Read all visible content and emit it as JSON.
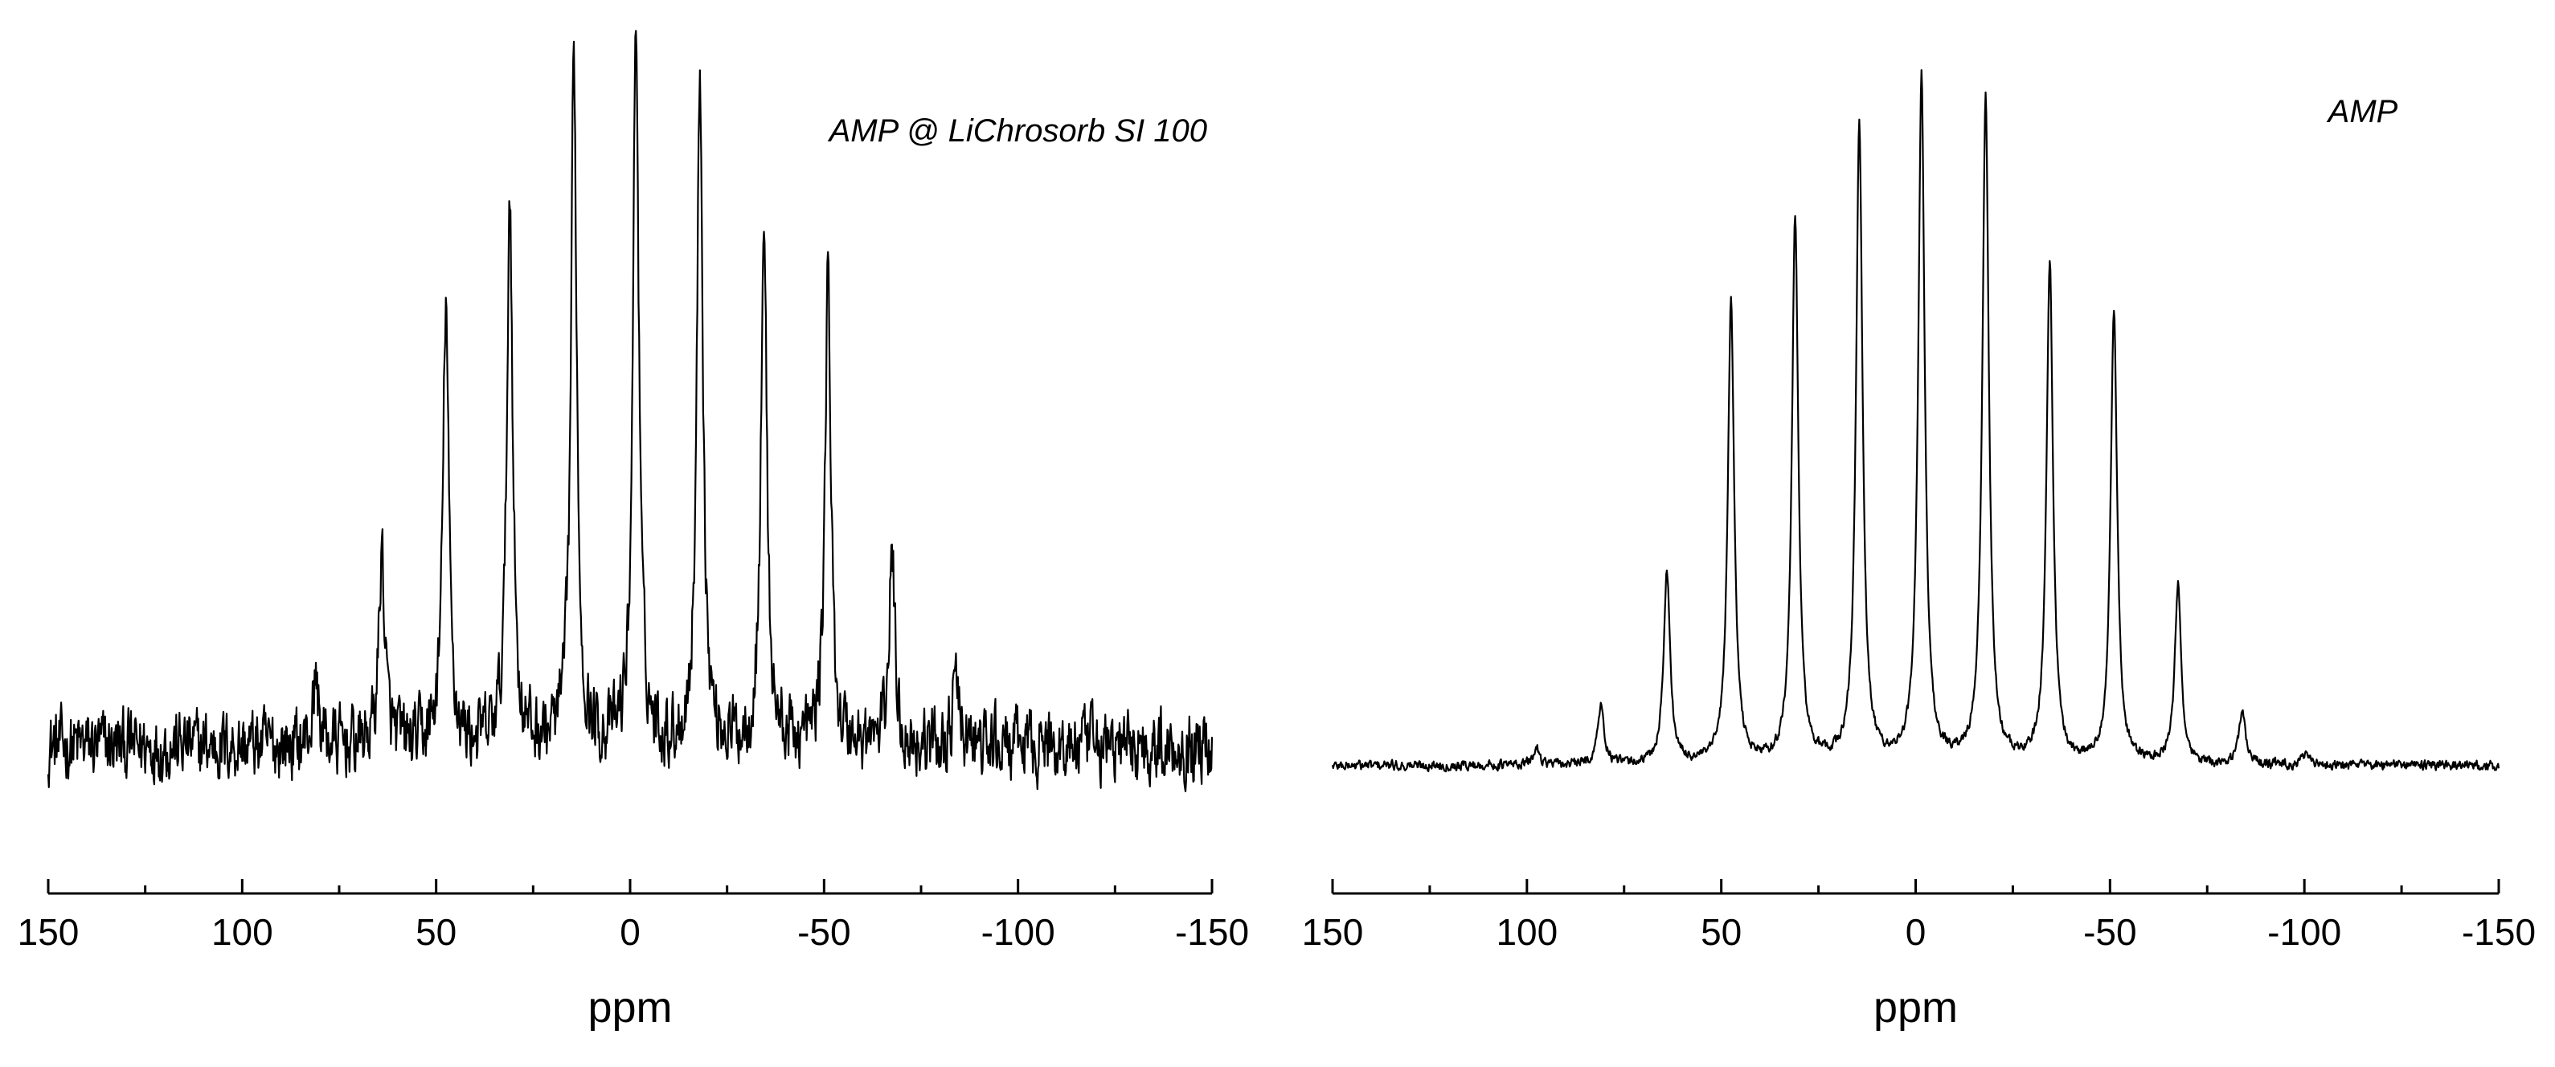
{
  "chart_data": [
    {
      "type": "line",
      "title": "AMP @ LiChrosorb SI 100",
      "xlabel": "ppm",
      "ylabel": "",
      "xlim": [
        150,
        -150
      ],
      "x_reversed": true,
      "x_ticks": [
        150,
        100,
        50,
        0,
        -50,
        -100,
        -150
      ],
      "x_minor_ticks": [
        125,
        75,
        25,
        -25,
        -75,
        -125
      ],
      "grid": false,
      "legend": "none",
      "baseline": 0.0,
      "noise": 0.055,
      "peak_width_ppm": 0.9,
      "peaks": [
        {
          "ppm": 81,
          "intensity": 0.09
        },
        {
          "ppm": 64,
          "intensity": 0.27
        },
        {
          "ppm": 47.5,
          "intensity": 0.61
        },
        {
          "ppm": 31,
          "intensity": 0.76
        },
        {
          "ppm": 14.5,
          "intensity": 0.94
        },
        {
          "ppm": -1.5,
          "intensity": 1.0
        },
        {
          "ppm": -18,
          "intensity": 0.94
        },
        {
          "ppm": -34.5,
          "intensity": 0.72
        },
        {
          "ppm": -51,
          "intensity": 0.65
        },
        {
          "ppm": -67.5,
          "intensity": 0.27
        },
        {
          "ppm": -84,
          "intensity": 0.09
        }
      ]
    },
    {
      "type": "line",
      "title": "AMP",
      "xlabel": "ppm",
      "ylabel": "",
      "xlim": [
        150,
        -150
      ],
      "x_reversed": true,
      "x_ticks": [
        150,
        100,
        50,
        0,
        -50,
        -100,
        -150
      ],
      "x_minor_ticks": [
        125,
        75,
        25,
        -25,
        -75,
        -125
      ],
      "grid": false,
      "legend": "none",
      "baseline": 0.0,
      "noise": 0.008,
      "peak_width_ppm": 1.0,
      "peaks": [
        {
          "ppm": 97.5,
          "intensity": 0.025
        },
        {
          "ppm": 81,
          "intensity": 0.085
        },
        {
          "ppm": 64,
          "intensity": 0.28
        },
        {
          "ppm": 47.5,
          "intensity": 0.67
        },
        {
          "ppm": 31,
          "intensity": 0.79
        },
        {
          "ppm": 14.5,
          "intensity": 0.93
        },
        {
          "ppm": -1.5,
          "intensity": 1.0
        },
        {
          "ppm": -18,
          "intensity": 0.97
        },
        {
          "ppm": -34.5,
          "intensity": 0.73
        },
        {
          "ppm": -51,
          "intensity": 0.66
        },
        {
          "ppm": -67.5,
          "intensity": 0.26
        },
        {
          "ppm": -84,
          "intensity": 0.08
        },
        {
          "ppm": -100.5,
          "intensity": 0.02
        }
      ]
    }
  ]
}
